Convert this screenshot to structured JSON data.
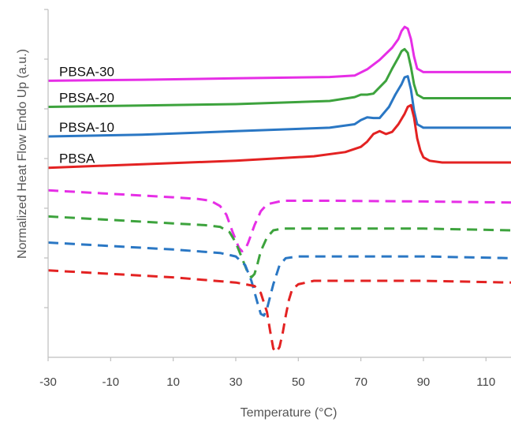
{
  "chart_data": {
    "type": "line",
    "xlabel": "Temperature (°C)",
    "ylabel": "Normalized Heat Flow Endo Up (a.u.)",
    "xlim": [
      -30,
      118
    ],
    "ylim": [
      0,
      10
    ],
    "x_ticks": [
      -30,
      -10,
      10,
      30,
      50,
      70,
      90,
      110
    ],
    "x_tick_labels": [
      "-30",
      "-10",
      "10",
      "30",
      "50",
      "70",
      "90",
      "110"
    ],
    "y_tick_count": 7,
    "grid": false,
    "series": [
      {
        "name": "PBSA-30",
        "style": "solid",
        "color": "#e62ee6",
        "x": [
          -30,
          0,
          30,
          60,
          68,
          72,
          76,
          80,
          82,
          83,
          84,
          85,
          86,
          87,
          88,
          90,
          95,
          105,
          118
        ],
        "y": [
          7.95,
          7.98,
          8.02,
          8.06,
          8.1,
          8.28,
          8.55,
          8.9,
          9.15,
          9.38,
          9.5,
          9.45,
          9.15,
          8.65,
          8.3,
          8.2,
          8.2,
          8.2,
          8.2
        ]
      },
      {
        "name": "PBSA-20",
        "style": "solid",
        "color": "#3da33d",
        "x": [
          -30,
          0,
          30,
          60,
          68,
          70,
          72,
          74,
          78,
          80,
          82,
          83,
          84,
          85,
          86,
          87,
          88,
          90,
          95,
          105,
          118
        ],
        "y": [
          7.2,
          7.24,
          7.28,
          7.37,
          7.48,
          7.55,
          7.55,
          7.58,
          7.95,
          8.3,
          8.62,
          8.8,
          8.86,
          8.75,
          8.35,
          7.85,
          7.55,
          7.45,
          7.45,
          7.45,
          7.45
        ]
      },
      {
        "name": "PBSA-10",
        "style": "solid",
        "color": "#2a77c4",
        "x": [
          -30,
          0,
          30,
          60,
          68,
          70,
          72,
          74,
          76,
          79,
          81,
          83,
          84,
          85,
          86,
          87,
          88,
          90,
          95,
          105,
          118
        ],
        "y": [
          6.35,
          6.4,
          6.5,
          6.6,
          6.7,
          6.82,
          6.9,
          6.88,
          6.88,
          7.2,
          7.55,
          7.85,
          8.05,
          8.08,
          7.7,
          7.1,
          6.7,
          6.6,
          6.6,
          6.6,
          6.6
        ]
      },
      {
        "name": "PBSA",
        "style": "solid",
        "color": "#e32222",
        "x": [
          -30,
          0,
          30,
          55,
          65,
          70,
          72,
          74,
          76,
          78,
          80,
          82,
          84,
          85,
          86,
          87,
          88,
          89,
          90,
          92,
          96,
          105,
          118
        ],
        "y": [
          5.45,
          5.55,
          5.65,
          5.78,
          5.9,
          6.05,
          6.2,
          6.42,
          6.5,
          6.42,
          6.48,
          6.7,
          7.0,
          7.2,
          7.25,
          6.9,
          6.3,
          5.95,
          5.75,
          5.65,
          5.6,
          5.6,
          5.6
        ]
      },
      {
        "name": "",
        "style": "dashed",
        "color": "#e62ee6",
        "x": [
          -30,
          -10,
          10,
          18,
          22,
          25,
          27,
          29,
          31,
          32,
          33,
          34,
          36,
          38,
          40,
          45,
          60,
          90,
          118
        ],
        "y": [
          4.8,
          4.7,
          4.6,
          4.55,
          4.5,
          4.35,
          4.1,
          3.6,
          3.15,
          3.05,
          3.1,
          3.3,
          3.8,
          4.2,
          4.4,
          4.5,
          4.5,
          4.48,
          4.45
        ]
      },
      {
        "name": "",
        "style": "dashed",
        "color": "#3da33d",
        "x": [
          -30,
          -10,
          10,
          20,
          25,
          28,
          30,
          32,
          34,
          35,
          36,
          37,
          38,
          40,
          42,
          45,
          60,
          90,
          118
        ],
        "y": [
          4.05,
          3.95,
          3.85,
          3.8,
          3.75,
          3.6,
          3.3,
          2.85,
          2.4,
          2.3,
          2.4,
          2.7,
          3.05,
          3.45,
          3.65,
          3.7,
          3.7,
          3.7,
          3.65
        ]
      },
      {
        "name": "",
        "style": "dashed",
        "color": "#2a77c4",
        "x": [
          -30,
          -10,
          10,
          25,
          30,
          33,
          35,
          37,
          38,
          39,
          40,
          42,
          44,
          46,
          50,
          60,
          90,
          118
        ],
        "y": [
          3.3,
          3.2,
          3.1,
          3.0,
          2.9,
          2.65,
          2.2,
          1.55,
          1.25,
          1.2,
          1.4,
          2.1,
          2.65,
          2.85,
          2.9,
          2.9,
          2.9,
          2.85
        ]
      },
      {
        "name": "",
        "style": "dashed",
        "color": "#e32222",
        "x": [
          -30,
          -10,
          10,
          30,
          36,
          38,
          40,
          41,
          42,
          43,
          44,
          45,
          46,
          47,
          48,
          50,
          55,
          70,
          90,
          118
        ],
        "y": [
          2.5,
          2.4,
          2.3,
          2.15,
          2.05,
          1.85,
          1.3,
          0.75,
          0.25,
          0.15,
          0.3,
          0.7,
          1.2,
          1.65,
          1.95,
          2.1,
          2.2,
          2.2,
          2.2,
          2.15
        ]
      }
    ]
  }
}
